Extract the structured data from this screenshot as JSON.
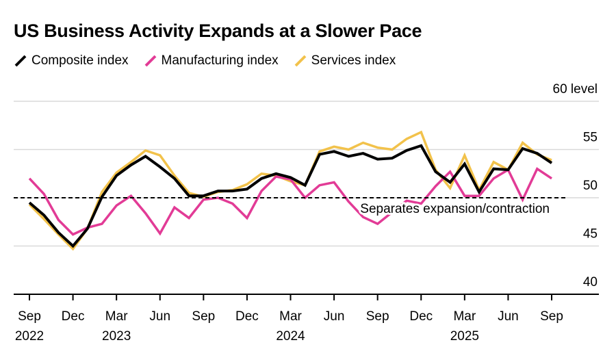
{
  "chart_data": {
    "type": "line",
    "title": "US Business Activity Expands at a Slower Pace",
    "colors": {
      "composite": "#000000",
      "manufacturing": "#e23b96",
      "services": "#f2c24b",
      "gridline": "#d9d9d9",
      "reference": "#000000"
    },
    "y_axis": {
      "ylim": [
        40,
        60
      ],
      "ticks": [
        {
          "value": 60,
          "label": "60 level"
        },
        {
          "value": 55,
          "label": "55"
        },
        {
          "value": 50,
          "label": "50"
        },
        {
          "value": 45,
          "label": "45"
        },
        {
          "value": 40,
          "label": "40"
        }
      ],
      "gridlines": true,
      "position": "right"
    },
    "x_axis": {
      "tick_months": [
        {
          "month": "2022-09",
          "label": "Sep",
          "year": "2022"
        },
        {
          "month": "2022-12",
          "label": "Dec",
          "year": ""
        },
        {
          "month": "2023-03",
          "label": "Mar",
          "year": "2023"
        },
        {
          "month": "2023-06",
          "label": "Jun",
          "year": ""
        },
        {
          "month": "2023-09",
          "label": "Sep",
          "year": ""
        },
        {
          "month": "2023-12",
          "label": "Dec",
          "year": ""
        },
        {
          "month": "2024-03",
          "label": "Mar",
          "year": "2024"
        },
        {
          "month": "2024-06",
          "label": "Jun",
          "year": ""
        },
        {
          "month": "2024-09",
          "label": "Sep",
          "year": ""
        },
        {
          "month": "2024-12",
          "label": "Dec",
          "year": ""
        },
        {
          "month": "2025-03",
          "label": "Mar",
          "year": "2025"
        },
        {
          "month": "2025-06",
          "label": "Jun",
          "year": ""
        },
        {
          "month": "2025-09",
          "label": "Sep",
          "year": ""
        }
      ]
    },
    "reference_line": {
      "value": 50,
      "label": "Separates expansion/contraction",
      "style": "dashed"
    },
    "legend_position": "top-left",
    "x": [
      "2022-09",
      "2022-10",
      "2022-11",
      "2022-12",
      "2023-01",
      "2023-02",
      "2023-03",
      "2023-04",
      "2023-05",
      "2023-06",
      "2023-07",
      "2023-08",
      "2023-09",
      "2023-10",
      "2023-11",
      "2023-12",
      "2024-01",
      "2024-02",
      "2024-03",
      "2024-04",
      "2024-05",
      "2024-06",
      "2024-07",
      "2024-08",
      "2024-09",
      "2024-10",
      "2024-11",
      "2024-12",
      "2025-01",
      "2025-02",
      "2025-03",
      "2025-04",
      "2025-05",
      "2025-06",
      "2025-07",
      "2025-08",
      "2025-09"
    ],
    "series": [
      {
        "key": "services",
        "name": "Services index",
        "values": [
          49.3,
          47.8,
          46.2,
          44.7,
          46.8,
          50.6,
          52.6,
          53.7,
          54.9,
          54.4,
          52.3,
          50.5,
          50.1,
          50.6,
          50.8,
          51.4,
          52.5,
          52.3,
          51.7,
          51.3,
          54.8,
          55.3,
          55.0,
          55.7,
          55.2,
          55.0,
          56.1,
          56.8,
          52.9,
          51.0,
          54.4,
          50.8,
          53.7,
          52.9,
          55.7,
          54.5,
          53.9
        ]
      },
      {
        "key": "manufacturing",
        "name": "Manufacturing index",
        "values": [
          52.0,
          50.4,
          47.7,
          46.2,
          46.9,
          47.3,
          49.2,
          50.2,
          48.4,
          46.3,
          49.0,
          47.9,
          49.8,
          50.0,
          49.4,
          47.9,
          50.7,
          52.2,
          51.9,
          50.0,
          51.3,
          51.6,
          49.6,
          48.0,
          47.3,
          48.5,
          49.7,
          49.4,
          51.2,
          52.7,
          50.2,
          50.2,
          52.0,
          52.9,
          49.8,
          53.0,
          52.0
        ]
      },
      {
        "key": "composite",
        "name": "Composite index",
        "values": [
          49.5,
          48.2,
          46.4,
          45.0,
          46.8,
          50.1,
          52.3,
          53.4,
          54.3,
          53.2,
          52.0,
          50.2,
          50.2,
          50.7,
          50.7,
          50.9,
          52.0,
          52.5,
          52.1,
          51.3,
          54.5,
          54.8,
          54.3,
          54.6,
          54.0,
          54.1,
          54.9,
          55.4,
          52.7,
          51.6,
          53.5,
          50.6,
          53.0,
          52.9,
          55.1,
          54.6,
          53.6
        ]
      }
    ],
    "legend_order": [
      "composite",
      "manufacturing",
      "services"
    ]
  }
}
